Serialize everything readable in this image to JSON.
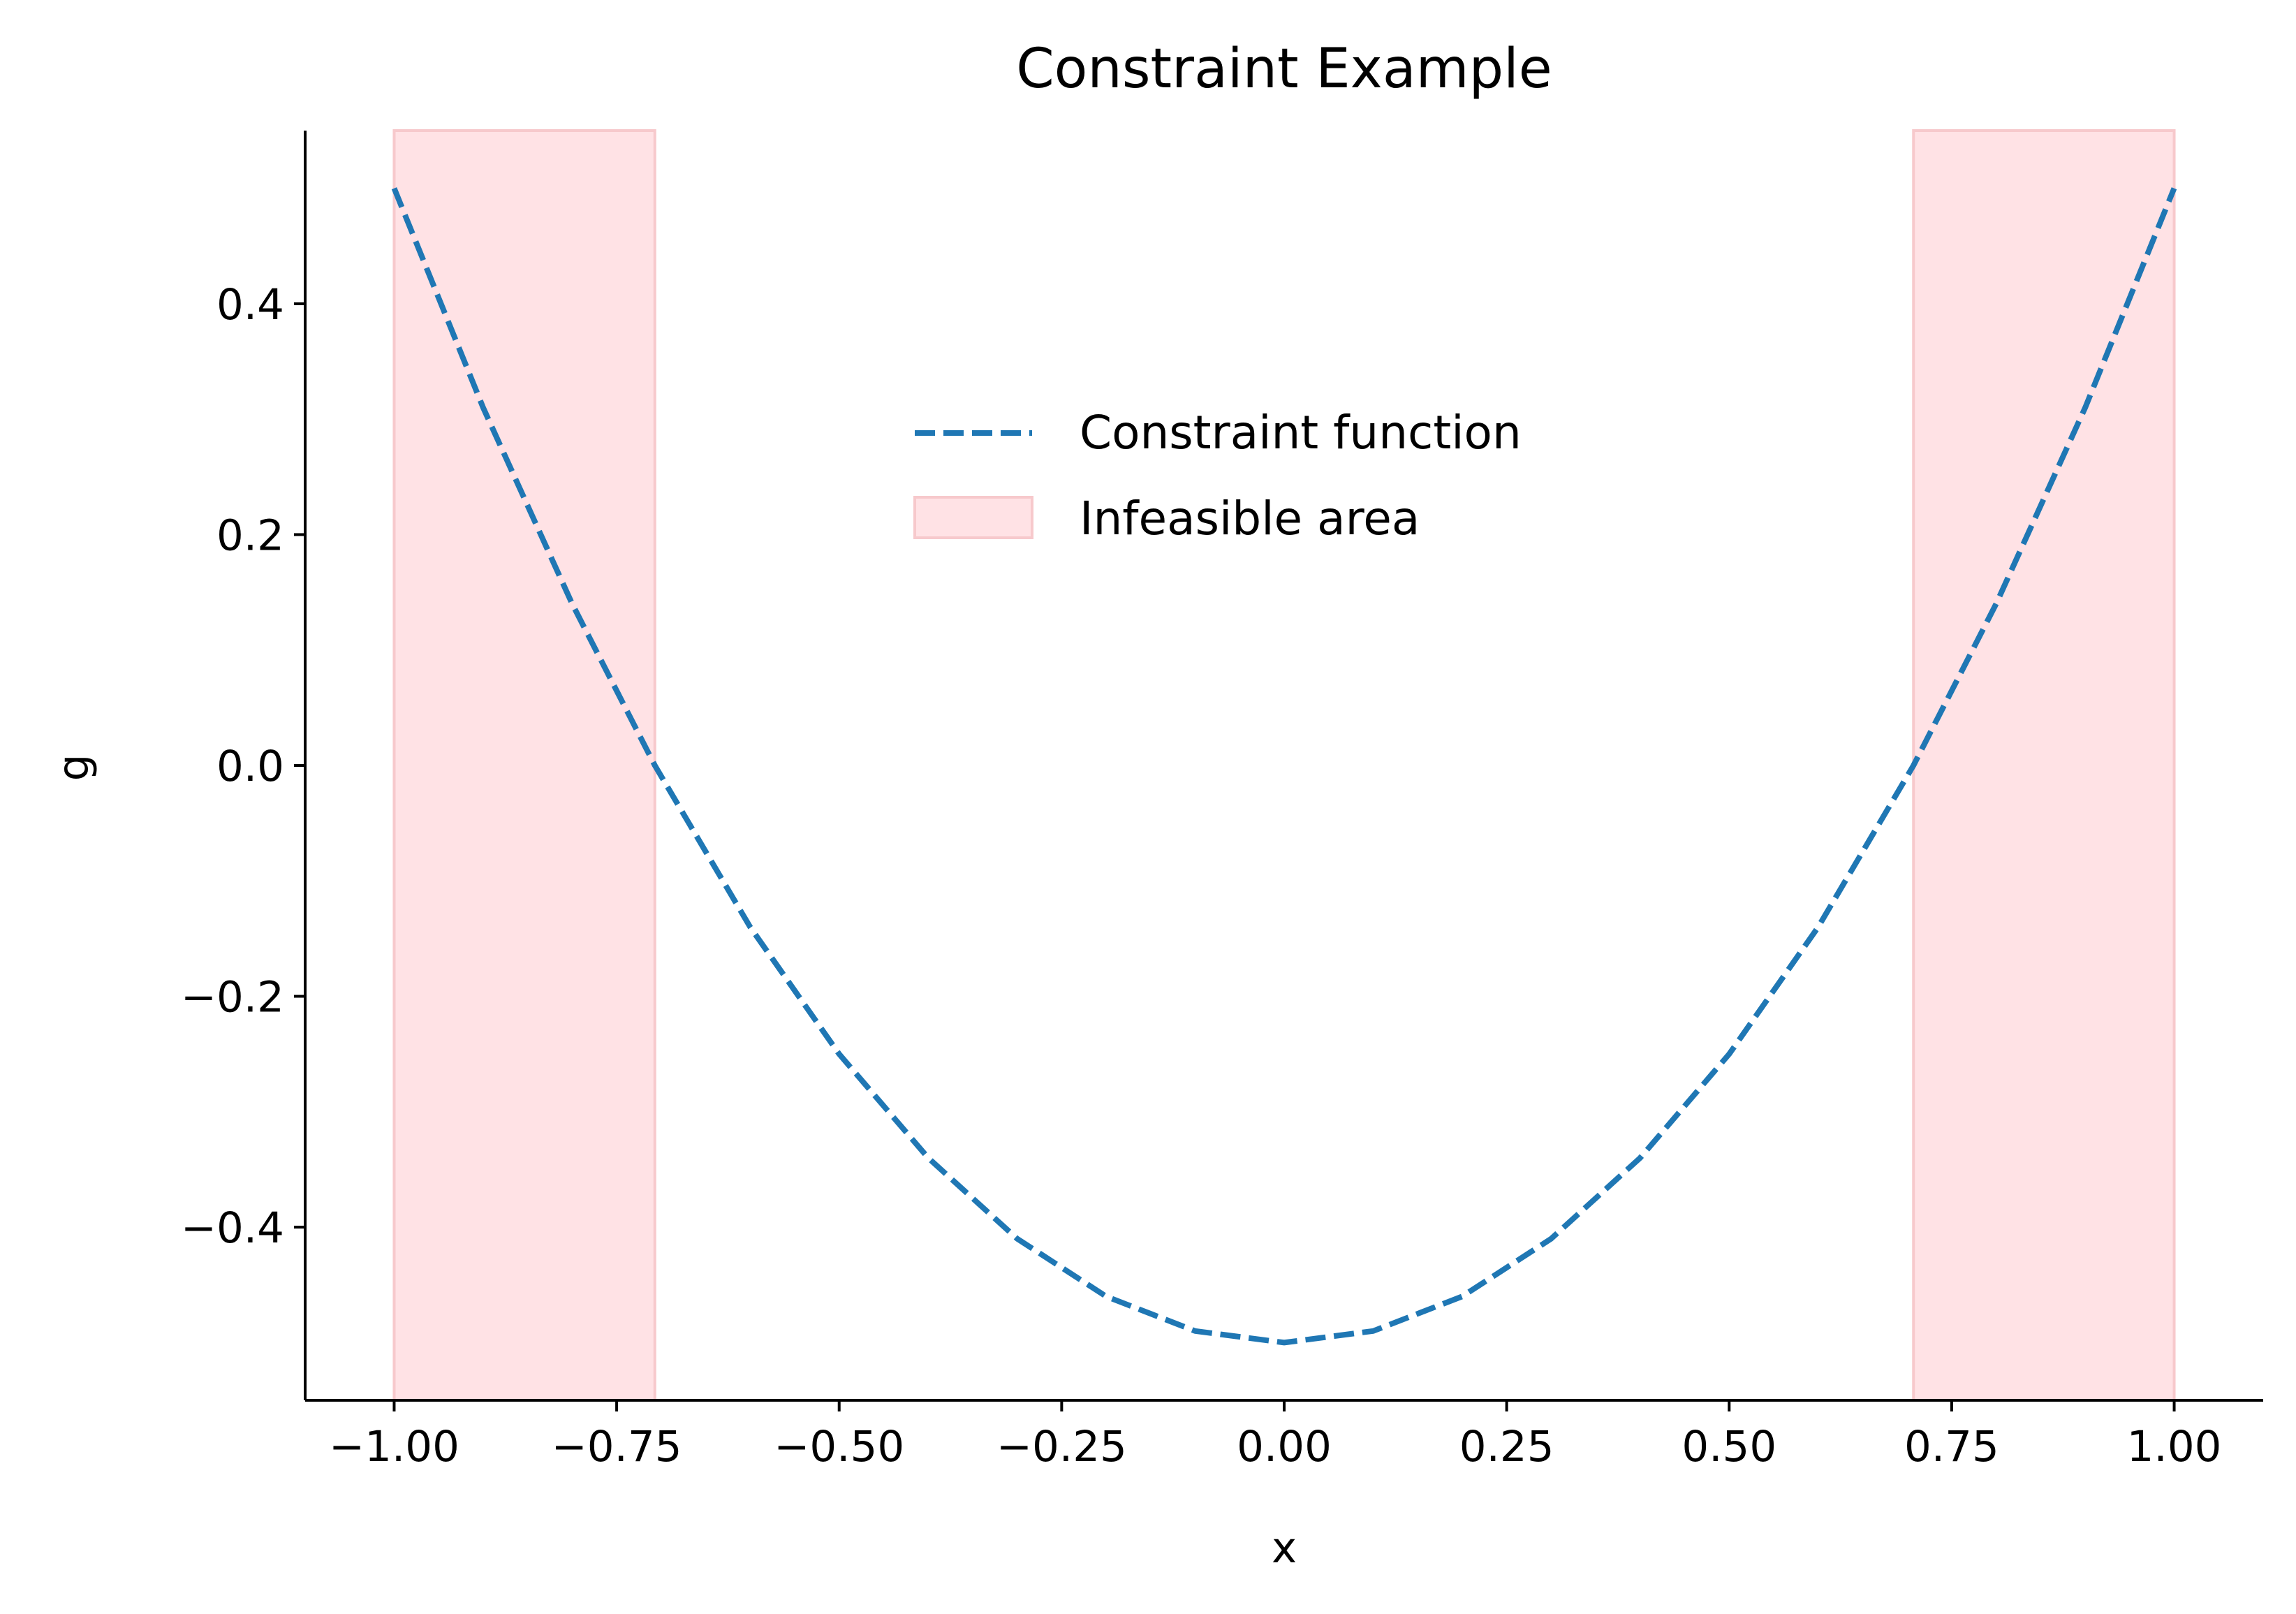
{
  "chart_data": {
    "type": "line",
    "title": "Constraint Example",
    "xlabel": "x",
    "ylabel": "g",
    "xlim": [
      -1.1,
      1.1
    ],
    "ylim": [
      -0.55,
      0.55
    ],
    "x_ticks": [
      -1.0,
      -0.75,
      -0.5,
      -0.25,
      0.0,
      0.25,
      0.5,
      0.75,
      1.0
    ],
    "x_tick_labels": [
      "−1.00",
      "−0.75",
      "−0.50",
      "−0.25",
      "0.00",
      "0.25",
      "0.50",
      "0.75",
      "1.00"
    ],
    "y_ticks": [
      -0.4,
      -0.2,
      0.0,
      0.2,
      0.4
    ],
    "y_tick_labels": [
      "−0.4",
      "−0.2",
      "0.0",
      "0.2",
      "0.4"
    ],
    "grid": false,
    "legend_position": "upper center",
    "series": [
      {
        "name": "Constraint function",
        "style": "dashed",
        "color": "#1f77b4",
        "x": [
          -1.0,
          -0.9,
          -0.8,
          -0.7071,
          -0.6,
          -0.5,
          -0.4,
          -0.3,
          -0.2,
          -0.1,
          0.0,
          0.1,
          0.2,
          0.3,
          0.4,
          0.5,
          0.6,
          0.7071,
          0.8,
          0.9,
          1.0
        ],
        "y": [
          0.5,
          0.31,
          0.14,
          0.0,
          -0.14,
          -0.25,
          -0.34,
          -0.41,
          -0.46,
          -0.49,
          -0.5,
          -0.49,
          -0.46,
          -0.41,
          -0.34,
          -0.25,
          -0.14,
          0.0,
          0.14,
          0.31,
          0.5
        ]
      }
    ],
    "shaded_regions": {
      "name": "Infeasible area",
      "color": "#ffe2e5",
      "edge_color": "#f7c9cc",
      "x_ranges": [
        [
          -1.0,
          -0.7071
        ],
        [
          0.7071,
          1.0
        ]
      ]
    }
  }
}
